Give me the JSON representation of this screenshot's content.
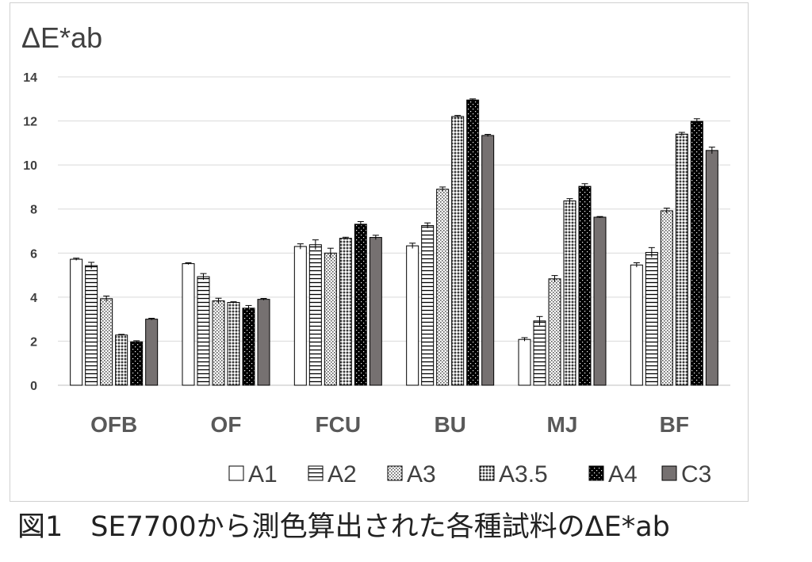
{
  "caption": "図1　SE7700から測色算出された各種試料のΔE*ab",
  "chart_data": {
    "type": "bar",
    "ylabel": "ΔE*ab",
    "ylim": [
      0,
      14
    ],
    "yticks": [
      0,
      2,
      4,
      6,
      8,
      10,
      12,
      14
    ],
    "grid": true,
    "legend_position": "bottom-right",
    "categories": [
      "OFB",
      "OF",
      "FCU",
      "BU",
      "MJ",
      "BF"
    ],
    "series": [
      {
        "name": "A1",
        "pattern": "white",
        "values": [
          5.72,
          5.52,
          6.3,
          6.33,
          2.08,
          5.46
        ],
        "errors": [
          0.05,
          0.04,
          0.12,
          0.12,
          0.08,
          0.1
        ]
      },
      {
        "name": "A2",
        "pattern": "hlines",
        "values": [
          5.43,
          4.93,
          6.38,
          7.25,
          2.92,
          6.03
        ],
        "errors": [
          0.15,
          0.14,
          0.22,
          0.12,
          0.2,
          0.22
        ]
      },
      {
        "name": "A3",
        "pattern": "dots-light",
        "values": [
          3.93,
          3.83,
          6.0,
          8.9,
          4.83,
          7.92
        ],
        "errors": [
          0.12,
          0.12,
          0.22,
          0.1,
          0.15,
          0.12
        ]
      },
      {
        "name": "A3.5",
        "pattern": "dots-dark",
        "values": [
          2.28,
          3.76,
          6.67,
          12.2,
          8.37,
          11.4
        ],
        "errors": [
          0.03,
          0.03,
          0.05,
          0.05,
          0.1,
          0.08
        ]
      },
      {
        "name": "A4",
        "pattern": "black-dots",
        "values": [
          1.97,
          3.5,
          7.31,
          12.95,
          9.03,
          11.98
        ],
        "errors": [
          0.05,
          0.12,
          0.12,
          0.05,
          0.12,
          0.12
        ]
      },
      {
        "name": "C3",
        "pattern": "gray",
        "values": [
          3.0,
          3.9,
          6.71,
          11.34,
          7.63,
          10.66
        ],
        "errors": [
          0.04,
          0.04,
          0.1,
          0.05,
          0.03,
          0.15
        ]
      }
    ]
  }
}
